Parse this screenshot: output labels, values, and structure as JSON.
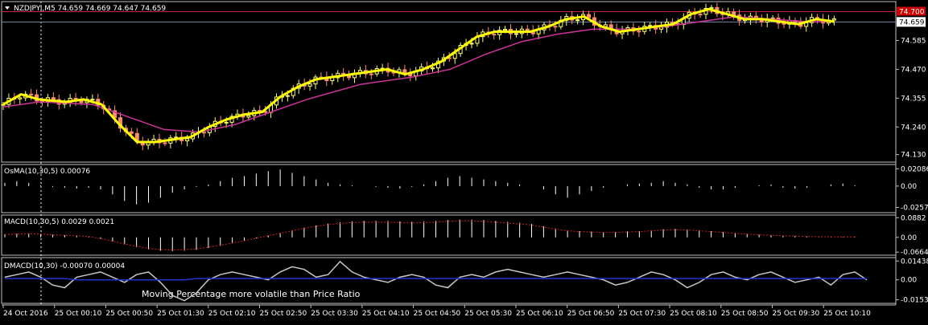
{
  "window": {
    "symbol_header": "NZDJPYi,M5  74.659 74.669 74.647 74.659"
  },
  "colors": {
    "background": "#000000",
    "frame": "#c0c0c0",
    "text": "#ffffff",
    "candle_up": "#ffff66",
    "candle_down": "#ff8c69",
    "fast_ma": "#ffff00",
    "slow_ma": "#cc3399",
    "histogram": "#ffffff",
    "macd_signal": "#cc2222",
    "dmacd_line": "#c8c8c8",
    "dmacd_signal": "#2233cc",
    "price_marker_bg": "#ffffff",
    "price_marker_red": "#cc0000",
    "ask_line": "#cc2233",
    "bid_line": "#7788aa",
    "crosshair": "#ffffff"
  },
  "chart_data": [
    {
      "type": "candlestick",
      "panel": "main",
      "title": "NZDJPYi,M5  74.659 74.669 74.647 74.659",
      "y_ticks": [
        "74.130",
        "74.240",
        "74.355",
        "74.470",
        "74.585",
        "74.659",
        "74.700"
      ],
      "ylim": [
        74.1,
        74.74
      ],
      "current_price": "74.659",
      "ask_price": "74.700",
      "price_path": [
        [
          0,
          74.33
        ],
        [
          0.02,
          74.37
        ],
        [
          0.04,
          74.35
        ],
        [
          0.07,
          74.34
        ],
        [
          0.09,
          74.35
        ],
        [
          0.11,
          74.33
        ],
        [
          0.13,
          74.25
        ],
        [
          0.15,
          74.18
        ],
        [
          0.17,
          74.18
        ],
        [
          0.19,
          74.19
        ],
        [
          0.21,
          74.2
        ],
        [
          0.23,
          74.24
        ],
        [
          0.25,
          74.27
        ],
        [
          0.27,
          74.29
        ],
        [
          0.29,
          74.3
        ],
        [
          0.31,
          74.36
        ],
        [
          0.33,
          74.4
        ],
        [
          0.35,
          74.43
        ],
        [
          0.37,
          74.44
        ],
        [
          0.39,
          74.45
        ],
        [
          0.41,
          74.46
        ],
        [
          0.43,
          74.47
        ],
        [
          0.45,
          74.45
        ],
        [
          0.47,
          74.47
        ],
        [
          0.49,
          74.5
        ],
        [
          0.51,
          74.55
        ],
        [
          0.53,
          74.6
        ],
        [
          0.55,
          74.62
        ],
        [
          0.57,
          74.62
        ],
        [
          0.59,
          74.62
        ],
        [
          0.61,
          74.64
        ],
        [
          0.63,
          74.67
        ],
        [
          0.65,
          74.68
        ],
        [
          0.67,
          74.64
        ],
        [
          0.69,
          74.62
        ],
        [
          0.71,
          74.63
        ],
        [
          0.73,
          74.64
        ],
        [
          0.75,
          74.65
        ],
        [
          0.77,
          74.69
        ],
        [
          0.79,
          74.71
        ],
        [
          0.81,
          74.69
        ],
        [
          0.83,
          74.67
        ],
        [
          0.85,
          74.67
        ],
        [
          0.87,
          74.66
        ],
        [
          0.89,
          74.65
        ],
        [
          0.91,
          74.67
        ],
        [
          0.93,
          74.66
        ]
      ],
      "slow_ma_path": [
        [
          0,
          74.32
        ],
        [
          0.04,
          74.34
        ],
        [
          0.1,
          74.33
        ],
        [
          0.14,
          74.28
        ],
        [
          0.18,
          74.23
        ],
        [
          0.22,
          74.22
        ],
        [
          0.26,
          74.25
        ],
        [
          0.3,
          74.3
        ],
        [
          0.34,
          74.35
        ],
        [
          0.4,
          74.41
        ],
        [
          0.46,
          74.44
        ],
        [
          0.5,
          74.47
        ],
        [
          0.54,
          74.53
        ],
        [
          0.58,
          74.58
        ],
        [
          0.62,
          74.61
        ],
        [
          0.66,
          74.63
        ],
        [
          0.7,
          74.63
        ],
        [
          0.74,
          74.64
        ],
        [
          0.78,
          74.66
        ],
        [
          0.82,
          74.68
        ],
        [
          0.86,
          74.67
        ],
        [
          0.9,
          74.66
        ],
        [
          0.93,
          74.66
        ]
      ]
    },
    {
      "type": "histogram",
      "panel": "osma",
      "title": "OsMA(10,30,5) 0.00076",
      "y_ticks": [
        "0.02086",
        "0.00",
        "-0.0257"
      ],
      "ylim": [
        -0.032,
        0.026
      ],
      "values": [
        0.004,
        0.006,
        0.004,
        0.001,
        -0.001,
        -0.002,
        -0.003,
        -0.002,
        -0.004,
        -0.01,
        -0.018,
        -0.022,
        -0.02,
        -0.014,
        -0.008,
        -0.004,
        -0.001,
        0.002,
        0.006,
        0.01,
        0.012,
        0.015,
        0.018,
        0.02,
        0.016,
        0.012,
        0.008,
        0.004,
        0.002,
        0.001,
        0.0,
        -0.001,
        -0.002,
        -0.003,
        -0.001,
        0.002,
        0.006,
        0.01,
        0.012,
        0.01,
        0.008,
        0.006,
        0.004,
        0.002,
        0.0,
        -0.004,
        -0.01,
        -0.014,
        -0.01,
        -0.006,
        -0.002,
        0.0,
        0.002,
        0.003,
        0.004,
        0.006,
        0.004,
        0.002,
        -0.002,
        -0.004,
        -0.004,
        -0.002,
        0.0,
        0.001,
        0.002,
        -0.002,
        -0.003,
        -0.002,
        0.0,
        0.002,
        0.003,
        0.001
      ]
    },
    {
      "type": "histogram",
      "panel": "macd",
      "title": "MACD(10,30,5) 0.0029 0.0021",
      "y_ticks": [
        "0.0882",
        "0.00",
        "-0.0664"
      ],
      "ylim": [
        -0.08,
        0.1
      ],
      "values": [
        0.014,
        0.016,
        0.018,
        0.016,
        0.012,
        0.01,
        0.008,
        0.004,
        -0.006,
        -0.018,
        -0.032,
        -0.044,
        -0.054,
        -0.06,
        -0.062,
        -0.06,
        -0.056,
        -0.048,
        -0.038,
        -0.028,
        -0.016,
        -0.004,
        0.008,
        0.02,
        0.032,
        0.044,
        0.054,
        0.062,
        0.068,
        0.072,
        0.074,
        0.074,
        0.074,
        0.072,
        0.07,
        0.072,
        0.074,
        0.078,
        0.08,
        0.08,
        0.078,
        0.074,
        0.07,
        0.066,
        0.06,
        0.05,
        0.04,
        0.032,
        0.028,
        0.026,
        0.024,
        0.024,
        0.026,
        0.028,
        0.032,
        0.036,
        0.038,
        0.036,
        0.032,
        0.028,
        0.024,
        0.02,
        0.016,
        0.012,
        0.01,
        0.008,
        0.006,
        0.004,
        0.003,
        0.003,
        0.002,
        0.002
      ]
    },
    {
      "type": "line",
      "panel": "dmacd",
      "title": "DMACD(10,30) -0.00070 0.00004",
      "annotation": "Moving Percentage more volatile than Price Ratio",
      "y_ticks": [
        "0.01438",
        "0.00",
        "-0.0153"
      ],
      "ylim": [
        -0.018,
        0.017
      ],
      "series": [
        {
          "values": [
            0.002,
            0.004,
            0.006,
            0.002,
            -0.004,
            -0.006,
            0.002,
            0.004,
            0.006,
            0.002,
            -0.002,
            0.004,
            0.006,
            -0.002,
            -0.012,
            -0.016,
            -0.01,
            0.0,
            0.004,
            0.006,
            0.004,
            0.002,
            0.0,
            0.006,
            0.01,
            0.008,
            0.002,
            0.004,
            0.014,
            0.006,
            0.002,
            0.0,
            -0.002,
            0.002,
            0.004,
            0.002,
            -0.004,
            -0.006,
            0.002,
            0.004,
            0.002,
            0.006,
            0.008,
            0.006,
            0.004,
            0.002,
            0.004,
            0.006,
            0.004,
            0.002,
            0.0,
            -0.004,
            -0.002,
            0.002,
            0.006,
            0.004,
            0.0,
            -0.006,
            -0.002,
            0.004,
            0.006,
            0.002,
            0.0,
            0.004,
            0.006,
            0.002,
            -0.002,
            0.0,
            0.002,
            -0.004,
            0.004,
            0.006,
            0.0
          ]
        },
        {
          "values": [
            0.001,
            0.001,
            0.001,
            0.001,
            0.001,
            0.001,
            0.0,
            0.0,
            0.0,
            0.0,
            0.0,
            0.0,
            0.0,
            0.0,
            0.0,
            0.0,
            0.001,
            0.001,
            0.001,
            0.001,
            0.001,
            0.001,
            0.001,
            0.001,
            0.001,
            0.001,
            0.001,
            0.001,
            0.001,
            0.001,
            0.001,
            0.001,
            0.001,
            0.001,
            0.001,
            0.001,
            0.001,
            0.001,
            0.001,
            0.001,
            0.001,
            0.001,
            0.001,
            0.001,
            0.001,
            0.001,
            0.001,
            0.001,
            0.001,
            0.001,
            0.001,
            0.001,
            0.001,
            0.001,
            0.001,
            0.001,
            0.001,
            0.001,
            0.001,
            0.001,
            0.001,
            0.001,
            0.001,
            0.001,
            0.001,
            0.001,
            0.001,
            0.001,
            0.001,
            0.001,
            0.001,
            0.001,
            0.001
          ]
        }
      ]
    }
  ],
  "x_axis_labels": [
    "24 Oct 2016",
    "25 Oct 00:10",
    "25 Oct 00:50",
    "25 Oct 01:30",
    "25 Oct 02:10",
    "25 Oct 02:50",
    "25 Oct 03:30",
    "25 Oct 04:10",
    "25 Oct 04:50",
    "25 Oct 05:30",
    "25 Oct 06:10",
    "25 Oct 06:50",
    "25 Oct 07:30",
    "25 Oct 08:10",
    "25 Oct 08:50",
    "25 Oct 09:30",
    "25 Oct 10:10"
  ]
}
